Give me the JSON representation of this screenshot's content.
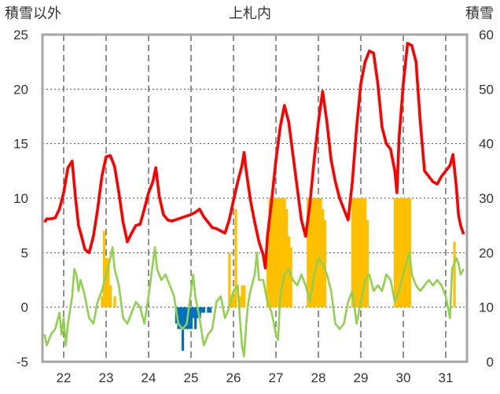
{
  "chart_data": {
    "type": "line",
    "title": "上札内",
    "ylabel_left": "積雪以外",
    "ylabel_right": "積雪",
    "xlabel": "",
    "x_tick_labels": [
      "22",
      "23",
      "24",
      "25",
      "26",
      "27",
      "28",
      "29",
      "30",
      "31"
    ],
    "ylim_left": [
      -5,
      25
    ],
    "y_ticks_left": [
      -5,
      0,
      5,
      10,
      15,
      20,
      25
    ],
    "ylim_right": [
      0,
      60
    ],
    "y_ticks_right": [
      0,
      10,
      20,
      30,
      40,
      50,
      60
    ],
    "xlim": [
      21.5,
      31.5
    ],
    "grid": "dashed vertical lines at day boundaries, dotted horizontal lines",
    "series": [
      {
        "color": "#ff0000",
        "axis": "left",
        "kind": "line",
        "points": [
          [
            21.55,
            7.8
          ],
          [
            21.6,
            8.1
          ],
          [
            21.7,
            8.1
          ],
          [
            21.8,
            8.2
          ],
          [
            21.9,
            9.0
          ],
          [
            22.0,
            10.5
          ],
          [
            22.1,
            12.8
          ],
          [
            22.2,
            13.4
          ],
          [
            22.28,
            10.0
          ],
          [
            22.35,
            7.5
          ],
          [
            22.42,
            6.5
          ],
          [
            22.5,
            5.3
          ],
          [
            22.6,
            5.0
          ],
          [
            22.7,
            6.5
          ],
          [
            22.8,
            9.0
          ],
          [
            22.9,
            12.0
          ],
          [
            23.0,
            13.8
          ],
          [
            23.1,
            13.9
          ],
          [
            23.2,
            12.9
          ],
          [
            23.3,
            10.5
          ],
          [
            23.4,
            7.8
          ],
          [
            23.5,
            6.0
          ],
          [
            23.6,
            6.8
          ],
          [
            23.7,
            7.5
          ],
          [
            23.8,
            7.6
          ],
          [
            23.9,
            9.0
          ],
          [
            24.0,
            10.5
          ],
          [
            24.1,
            11.5
          ],
          [
            24.17,
            12.8
          ],
          [
            24.25,
            10.2
          ],
          [
            24.35,
            8.5
          ],
          [
            24.45,
            8.0
          ],
          [
            24.55,
            7.9
          ],
          [
            24.7,
            8.1
          ],
          [
            24.85,
            8.3
          ],
          [
            25.0,
            8.5
          ],
          [
            25.1,
            8.7
          ],
          [
            25.2,
            9.0
          ],
          [
            25.3,
            8.3
          ],
          [
            25.4,
            7.8
          ],
          [
            25.5,
            7.3
          ],
          [
            25.6,
            7.2
          ],
          [
            25.7,
            7.0
          ],
          [
            25.8,
            6.8
          ],
          [
            25.9,
            8.0
          ],
          [
            26.0,
            9.8
          ],
          [
            26.1,
            11.5
          ],
          [
            26.2,
            13.0
          ],
          [
            26.25,
            14.2
          ],
          [
            26.3,
            12.5
          ],
          [
            26.4,
            9.8
          ],
          [
            26.5,
            7.8
          ],
          [
            26.6,
            6.0
          ],
          [
            26.7,
            4.8
          ],
          [
            26.75,
            3.6
          ],
          [
            26.8,
            6.5
          ],
          [
            26.9,
            9.8
          ],
          [
            27.0,
            13.5
          ],
          [
            27.1,
            16.5
          ],
          [
            27.2,
            18.5
          ],
          [
            27.3,
            17.0
          ],
          [
            27.4,
            14.0
          ],
          [
            27.5,
            11.0
          ],
          [
            27.6,
            8.0
          ],
          [
            27.7,
            6.5
          ],
          [
            27.8,
            9.5
          ],
          [
            27.9,
            13.5
          ],
          [
            28.0,
            17.0
          ],
          [
            28.1,
            19.8
          ],
          [
            28.2,
            17.0
          ],
          [
            28.3,
            13.5
          ],
          [
            28.4,
            11.5
          ],
          [
            28.5,
            10.0
          ],
          [
            28.6,
            9.0
          ],
          [
            28.7,
            8.0
          ],
          [
            28.8,
            11.5
          ],
          [
            28.9,
            16.5
          ],
          [
            29.0,
            20.5
          ],
          [
            29.1,
            22.5
          ],
          [
            29.2,
            23.5
          ],
          [
            29.3,
            23.3
          ],
          [
            29.4,
            20.5
          ],
          [
            29.5,
            16.5
          ],
          [
            29.6,
            15.0
          ],
          [
            29.7,
            14.5
          ],
          [
            29.8,
            12.5
          ],
          [
            29.85,
            10.5
          ],
          [
            29.9,
            15.5
          ],
          [
            30.0,
            20.5
          ],
          [
            30.1,
            24.2
          ],
          [
            30.2,
            24.0
          ],
          [
            30.3,
            22.5
          ],
          [
            30.4,
            17.0
          ],
          [
            30.5,
            12.5
          ],
          [
            30.6,
            12.0
          ],
          [
            30.7,
            11.5
          ],
          [
            30.8,
            11.3
          ],
          [
            30.9,
            12.0
          ],
          [
            31.0,
            12.5
          ],
          [
            31.1,
            13.0
          ],
          [
            31.17,
            14.0
          ],
          [
            31.25,
            11.0
          ],
          [
            31.3,
            8.5
          ],
          [
            31.35,
            7.5
          ],
          [
            31.42,
            6.7
          ]
        ]
      },
      {
        "color": "#92d050",
        "axis": "left",
        "kind": "line",
        "points": [
          [
            21.55,
            -2.5
          ],
          [
            21.6,
            -3.5
          ],
          [
            21.7,
            -2.5
          ],
          [
            21.8,
            -2.0
          ],
          [
            21.9,
            -0.5
          ],
          [
            21.95,
            -2.5
          ],
          [
            22.0,
            -1.0
          ],
          [
            22.05,
            -3.5
          ],
          [
            22.1,
            -1.5
          ],
          [
            22.2,
            1.0
          ],
          [
            22.25,
            3.5
          ],
          [
            22.3,
            3.0
          ],
          [
            22.35,
            1.5
          ],
          [
            22.4,
            2.5
          ],
          [
            22.5,
            1.0
          ],
          [
            22.6,
            -1.0
          ],
          [
            22.7,
            -1.5
          ],
          [
            22.8,
            0.5
          ],
          [
            22.9,
            1.5
          ],
          [
            23.0,
            3.0
          ],
          [
            23.1,
            4.5
          ],
          [
            23.15,
            5.5
          ],
          [
            23.2,
            3.5
          ],
          [
            23.3,
            2.0
          ],
          [
            23.4,
            -1.0
          ],
          [
            23.5,
            -1.5
          ],
          [
            23.6,
            -0.5
          ],
          [
            23.7,
            0.5
          ],
          [
            23.8,
            0.0
          ],
          [
            23.9,
            -1.5
          ],
          [
            24.0,
            1.0
          ],
          [
            24.1,
            4.0
          ],
          [
            24.15,
            5.5
          ],
          [
            24.2,
            3.5
          ],
          [
            24.3,
            2.5
          ],
          [
            24.4,
            3.0
          ],
          [
            24.5,
            2.0
          ],
          [
            24.6,
            1.0
          ],
          [
            24.7,
            -1.5
          ],
          [
            24.8,
            -2.0
          ],
          [
            24.9,
            -1.5
          ],
          [
            25.0,
            1.5
          ],
          [
            25.05,
            3.0
          ],
          [
            25.1,
            1.0
          ],
          [
            25.2,
            -1.0
          ],
          [
            25.3,
            -3.5
          ],
          [
            25.4,
            -2.5
          ],
          [
            25.5,
            -2.0
          ],
          [
            25.6,
            0.5
          ],
          [
            25.7,
            1.0
          ],
          [
            25.8,
            -1.0
          ],
          [
            25.9,
            0.0
          ],
          [
            26.0,
            1.5
          ],
          [
            26.1,
            2.0
          ],
          [
            26.15,
            -1.0
          ],
          [
            26.2,
            -3.5
          ],
          [
            26.25,
            -4.5
          ],
          [
            26.3,
            -1.5
          ],
          [
            26.35,
            0.5
          ],
          [
            26.4,
            1.5
          ],
          [
            26.5,
            3.0
          ],
          [
            26.55,
            5.0
          ],
          [
            26.6,
            2.5
          ],
          [
            26.7,
            2.5
          ],
          [
            26.8,
            0.5
          ],
          [
            26.9,
            -0.5
          ],
          [
            27.0,
            -2.5
          ],
          [
            27.05,
            -3.0
          ],
          [
            27.1,
            1.0
          ],
          [
            27.2,
            3.0
          ],
          [
            27.3,
            3.5
          ],
          [
            27.4,
            2.5
          ],
          [
            27.5,
            2.0
          ],
          [
            27.6,
            3.0
          ],
          [
            27.7,
            2.0
          ],
          [
            27.8,
            0.5
          ],
          [
            27.9,
            3.0
          ],
          [
            28.0,
            4.5
          ],
          [
            28.1,
            4.0
          ],
          [
            28.2,
            3.0
          ],
          [
            28.3,
            1.5
          ],
          [
            28.4,
            -1.5
          ],
          [
            28.5,
            -2.0
          ],
          [
            28.6,
            -1.5
          ],
          [
            28.7,
            0.5
          ],
          [
            28.8,
            1.5
          ],
          [
            28.9,
            -1.5
          ],
          [
            29.0,
            0.5
          ],
          [
            29.1,
            2.5
          ],
          [
            29.2,
            3.0
          ],
          [
            29.3,
            1.5
          ],
          [
            29.4,
            2.0
          ],
          [
            29.5,
            1.5
          ],
          [
            29.6,
            3.0
          ],
          [
            29.7,
            2.5
          ],
          [
            29.8,
            0.5
          ],
          [
            29.9,
            1.5
          ],
          [
            30.0,
            3.0
          ],
          [
            30.1,
            4.5
          ],
          [
            30.15,
            5.0
          ],
          [
            30.2,
            3.0
          ],
          [
            30.3,
            2.0
          ],
          [
            30.4,
            1.5
          ],
          [
            30.5,
            2.0
          ],
          [
            30.6,
            2.5
          ],
          [
            30.7,
            2.0
          ],
          [
            30.8,
            2.5
          ],
          [
            30.9,
            2.0
          ],
          [
            31.0,
            1.0
          ],
          [
            31.05,
            0.0
          ],
          [
            31.1,
            -1.0
          ],
          [
            31.15,
            3.5
          ],
          [
            31.25,
            4.5
          ],
          [
            31.3,
            4.0
          ],
          [
            31.35,
            3.0
          ],
          [
            31.42,
            3.5
          ]
        ]
      },
      {
        "color": "#ffc000",
        "axis": "left",
        "kind": "bars",
        "bars": [
          [
            22.9,
            1.0
          ],
          [
            22.95,
            7.0
          ],
          [
            23.0,
            4.5
          ],
          [
            23.05,
            4.5
          ],
          [
            23.1,
            2.0
          ],
          [
            23.2,
            1.0
          ],
          [
            25.9,
            5.0
          ],
          [
            25.95,
            1.0
          ],
          [
            26.0,
            1.0
          ],
          [
            26.05,
            9.0
          ],
          [
            26.15,
            1.0
          ],
          [
            26.2,
            2.0
          ],
          [
            26.25,
            2.0
          ],
          [
            26.8,
            5.0
          ],
          [
            26.85,
            10.0
          ],
          [
            26.9,
            10.0
          ],
          [
            26.95,
            10.0
          ],
          [
            27.0,
            10.0
          ],
          [
            27.05,
            10.0
          ],
          [
            27.1,
            10.0
          ],
          [
            27.15,
            10.0
          ],
          [
            27.2,
            10.0
          ],
          [
            27.25,
            9.0
          ],
          [
            27.3,
            6.5
          ],
          [
            27.35,
            5.5
          ],
          [
            27.75,
            10.0
          ],
          [
            27.8,
            10.0
          ],
          [
            27.85,
            10.0
          ],
          [
            27.9,
            10.0
          ],
          [
            27.95,
            10.0
          ],
          [
            28.0,
            10.0
          ],
          [
            28.05,
            10.0
          ],
          [
            28.1,
            9.0
          ],
          [
            28.15,
            8.0
          ],
          [
            28.8,
            10.0
          ],
          [
            28.85,
            10.0
          ],
          [
            28.9,
            10.0
          ],
          [
            28.95,
            10.0
          ],
          [
            29.0,
            10.0
          ],
          [
            29.05,
            10.0
          ],
          [
            29.1,
            10.0
          ],
          [
            29.15,
            8.0
          ],
          [
            29.8,
            10.0
          ],
          [
            29.85,
            10.0
          ],
          [
            29.9,
            10.0
          ],
          [
            29.95,
            10.0
          ],
          [
            30.0,
            10.0
          ],
          [
            30.05,
            10.0
          ],
          [
            30.1,
            10.0
          ],
          [
            30.15,
            10.0
          ],
          [
            31.2,
            6.0
          ]
        ]
      },
      {
        "color": "#0070c0",
        "axis": "left",
        "kind": "bars",
        "bars": [
          [
            24.65,
            -1.5
          ],
          [
            24.7,
            -2.0
          ],
          [
            24.75,
            -2.0
          ],
          [
            24.8,
            -4.0
          ],
          [
            24.85,
            -2.0
          ],
          [
            24.9,
            -2.0
          ],
          [
            24.95,
            -2.0
          ],
          [
            25.0,
            -2.0
          ],
          [
            25.05,
            -1.0
          ],
          [
            25.1,
            -2.0
          ],
          [
            25.15,
            -1.0
          ],
          [
            25.2,
            -1.0
          ],
          [
            25.25,
            -0.5
          ],
          [
            25.3,
            -0.5
          ],
          [
            25.4,
            -0.5
          ],
          [
            25.45,
            -0.5
          ]
        ]
      }
    ]
  }
}
